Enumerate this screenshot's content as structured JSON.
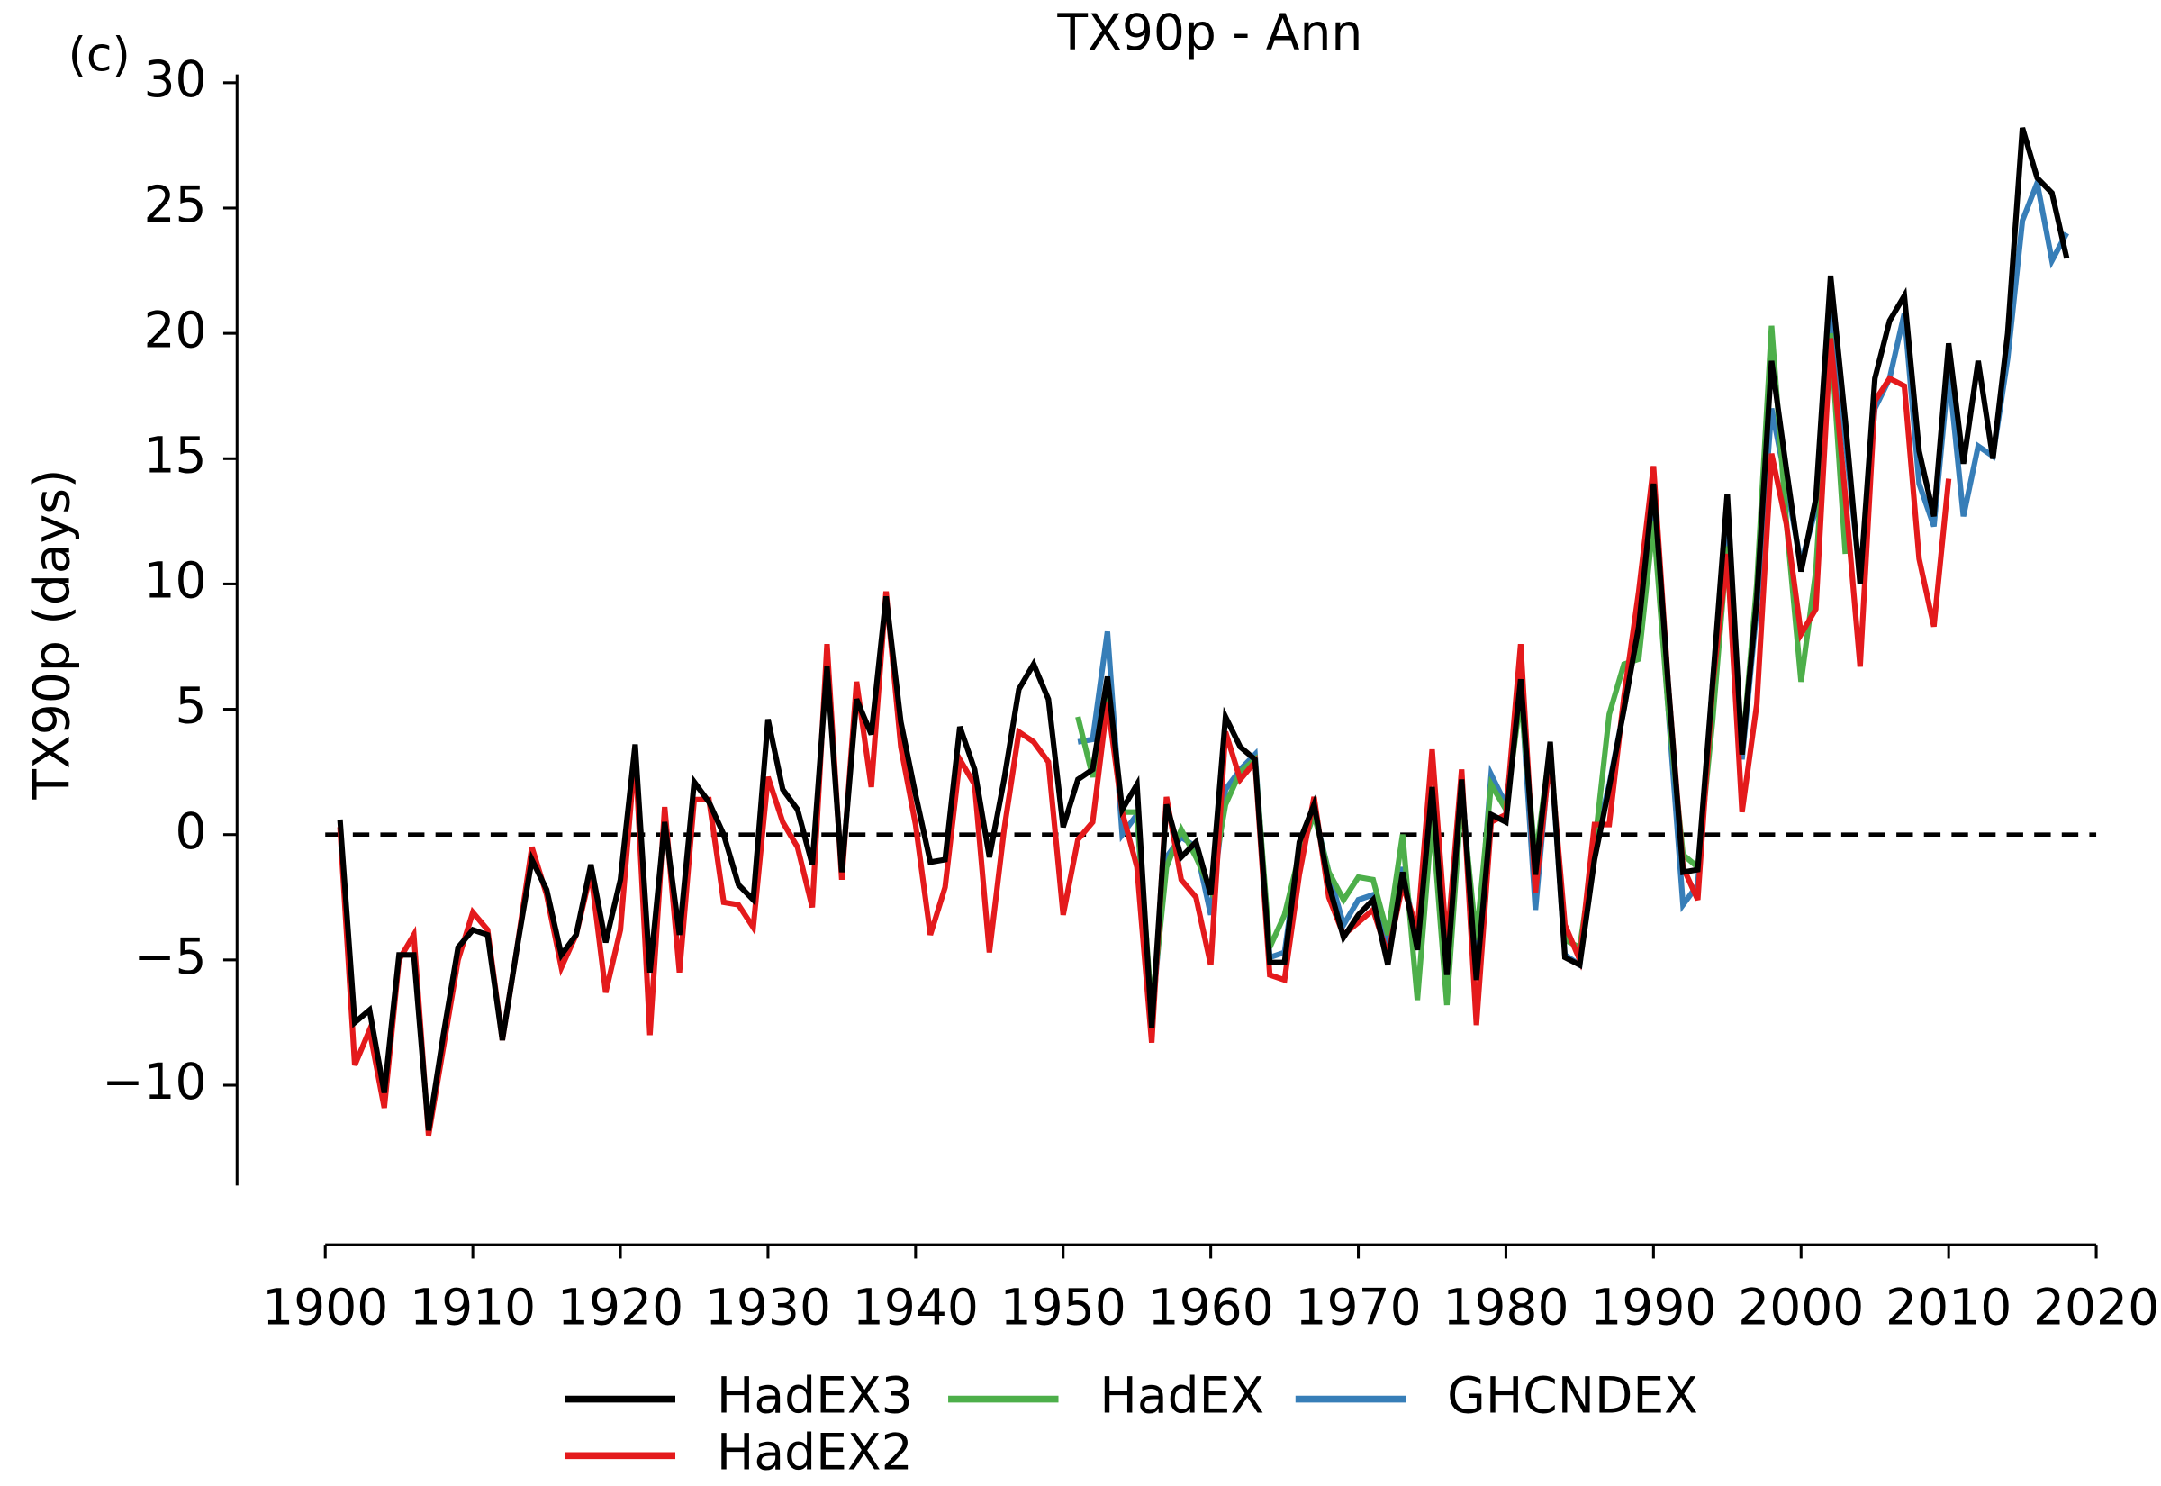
{
  "chart_data": {
    "type": "line",
    "title": "TX90p - Ann",
    "panel_label": "(c)",
    "y_label": "TX90p (days)",
    "xlim": [
      1900,
      2020
    ],
    "xticks": [
      1900,
      1910,
      1920,
      1930,
      1940,
      1950,
      1960,
      1970,
      1980,
      1990,
      2000,
      2010,
      2020
    ],
    "ylim": [
      -14,
      30
    ],
    "yticks": [
      {
        "value": -10,
        "label": "−10"
      },
      {
        "value": -5,
        "label": "−5"
      },
      0,
      5,
      10,
      15,
      20,
      25,
      30
    ],
    "reference_line": 0,
    "legend": "lower center",
    "x": [
      1901,
      1902,
      1903,
      1904,
      1905,
      1906,
      1907,
      1908,
      1909,
      1910,
      1911,
      1912,
      1913,
      1914,
      1915,
      1916,
      1917,
      1918,
      1919,
      1920,
      1921,
      1922,
      1923,
      1924,
      1925,
      1926,
      1927,
      1928,
      1929,
      1930,
      1931,
      1932,
      1933,
      1934,
      1935,
      1936,
      1937,
      1938,
      1939,
      1940,
      1941,
      1942,
      1943,
      1944,
      1945,
      1946,
      1947,
      1948,
      1949,
      1950,
      1951,
      1952,
      1953,
      1954,
      1955,
      1956,
      1957,
      1958,
      1959,
      1960,
      1961,
      1962,
      1963,
      1964,
      1965,
      1966,
      1967,
      1968,
      1969,
      1970,
      1971,
      1972,
      1973,
      1974,
      1975,
      1976,
      1977,
      1978,
      1979,
      1980,
      1981,
      1982,
      1983,
      1984,
      1985,
      1986,
      1987,
      1988,
      1989,
      1990,
      1991,
      1992,
      1993,
      1994,
      1995,
      1996,
      1997,
      1998,
      1999,
      2000,
      2001,
      2002,
      2003,
      2004,
      2005,
      2006,
      2007,
      2008,
      2009,
      2010,
      2011,
      2012,
      2013,
      2014,
      2015,
      2016,
      2017,
      2018
    ],
    "series": [
      {
        "name": "HadEX3",
        "color": "#000000",
        "values": [
          0.6,
          -7.5,
          -7,
          -10.3,
          -4.8,
          -4.8,
          -11.8,
          -8,
          -4.5,
          -3.8,
          -4,
          -8.2,
          -4.5,
          -1,
          -2.2,
          -4.8,
          -4,
          -1.2,
          -4.3,
          -1.8,
          3.6,
          -5.5,
          0.5,
          -4,
          2.1,
          1.3,
          0,
          -2,
          -2.6,
          4.6,
          1.8,
          1,
          -1.2,
          6.7,
          -1.5,
          5.4,
          4,
          9.5,
          4.5,
          1.6,
          -1.1,
          -1,
          4.3,
          2.6,
          -0.9,
          2.2,
          5.8,
          6.8,
          5.4,
          0.3,
          2.2,
          2.6,
          6.3,
          1,
          2,
          -7.7,
          1.2,
          -0.9,
          -0.3,
          -2.4,
          4.7,
          3.5,
          3,
          -5.1,
          -5.1,
          -0.3,
          1.2,
          -2,
          -4.1,
          -3.2,
          -2.6,
          -5.2,
          -1.5,
          -4.6,
          1.9,
          -5.6,
          2.2,
          -5.8,
          0.8,
          0.5,
          6.2,
          -1.6,
          3.7,
          -4.9,
          -5.2,
          -1,
          1.9,
          5,
          8.3,
          14,
          6,
          -1.5,
          -1.4,
          6,
          13.6,
          3.2,
          9.4,
          18.9,
          14.6,
          10.5,
          13.4,
          22.3,
          16.5,
          10,
          18.2,
          20.5,
          21.5,
          15.3,
          12.7,
          19.6,
          14.8,
          18.9,
          15,
          20,
          28.2,
          26.2,
          25.6,
          23
        ]
      },
      {
        "name": "HadEX2",
        "color": "#e41a1c",
        "values": [
          0.3,
          -9.2,
          -7.8,
          -10.9,
          -5,
          -4,
          -12,
          -8.5,
          -5,
          -3.1,
          -3.8,
          -8.2,
          -4.5,
          -0.5,
          -2.4,
          -5.3,
          -4,
          -1.5,
          -6.3,
          -3.8,
          3.3,
          -8,
          1.1,
          -5.5,
          1.4,
          1.4,
          -2.7,
          -2.8,
          -3.7,
          2.3,
          0.5,
          -0.5,
          -2.9,
          7.6,
          -1.8,
          6.1,
          1.9,
          9.7,
          3.5,
          0.4,
          -4,
          -2.1,
          3,
          2,
          -4.7,
          0.2,
          4.1,
          3.7,
          2.9,
          -3.2,
          -0.2,
          0.5,
          5.3,
          0.9,
          -1.3,
          -8.3,
          1.5,
          -1.8,
          -2.5,
          -5.2,
          4.1,
          2.2,
          2.9,
          -5.6,
          -5.8,
          -1.6,
          1.5,
          -2.5,
          -4,
          -3.5,
          -3,
          -4.8,
          -2,
          -3.8,
          3.4,
          -4.5,
          2.6,
          -7.6,
          0.5,
          0.8,
          7.6,
          -2.3,
          3.2,
          -3.6,
          -5,
          0.4,
          0.4,
          5.5,
          9.7,
          14.7,
          6,
          -1.3,
          -2.6,
          5.9,
          11.2,
          0.9,
          5.2,
          15.2,
          12.4,
          8,
          9,
          19.8,
          13.5,
          6.7,
          17.3,
          18.2,
          17.9,
          11,
          8.3,
          14.2,
          null,
          null,
          null,
          null,
          null,
          null,
          null,
          null
        ]
      },
      {
        "name": "HadEX",
        "color": "#4daf4a",
        "values": [
          null,
          null,
          null,
          null,
          null,
          null,
          null,
          null,
          null,
          null,
          null,
          null,
          null,
          null,
          null,
          null,
          null,
          null,
          null,
          null,
          null,
          null,
          null,
          null,
          null,
          null,
          null,
          null,
          null,
          null,
          null,
          null,
          null,
          null,
          null,
          null,
          null,
          null,
          null,
          null,
          null,
          null,
          null,
          null,
          null,
          null,
          null,
          null,
          null,
          null,
          4.7,
          2.3,
          5.5,
          0.9,
          0.9,
          -7,
          -1.3,
          0.2,
          -0.9,
          -2.2,
          1.2,
          2.5,
          3,
          -4.5,
          -3.2,
          -0.8,
          0.8,
          -1.5,
          -2.6,
          -1.7,
          -1.8,
          -4,
          0,
          -6.6,
          0.7,
          -6.8,
          1.5,
          -4.2,
          2,
          1,
          5.5,
          -1,
          3.5,
          -4.2,
          -4.5,
          -0.5,
          4.8,
          6.8,
          7,
          12.5,
          5,
          -0.8,
          -1.3,
          4.5,
          11.5,
          3.2,
          10,
          20.3,
          12.5,
          6.1,
          10.5,
          20,
          11.2,
          null,
          null,
          null,
          null,
          null,
          null,
          null,
          null,
          null,
          null,
          null,
          null,
          null,
          null,
          null
        ]
      },
      {
        "name": "GHCNDEX",
        "color": "#377eb8",
        "values": [
          null,
          null,
          null,
          null,
          null,
          null,
          null,
          null,
          null,
          null,
          null,
          null,
          null,
          null,
          null,
          null,
          null,
          null,
          null,
          null,
          null,
          null,
          null,
          null,
          null,
          null,
          null,
          null,
          null,
          null,
          null,
          null,
          null,
          null,
          null,
          null,
          null,
          null,
          null,
          null,
          null,
          null,
          null,
          null,
          null,
          null,
          null,
          null,
          null,
          null,
          3.7,
          3.8,
          8.1,
          0,
          0.8,
          -7.4,
          -0.9,
          -0.1,
          -0.5,
          -3.2,
          1.8,
          2.6,
          3.2,
          -4.9,
          -4.7,
          -0.5,
          0.9,
          -1.5,
          -3.6,
          -2.6,
          -2.4,
          -4.5,
          -1.3,
          -4.5,
          1.8,
          -5.5,
          2,
          -5,
          2.4,
          1.2,
          6,
          -3,
          3.5,
          -4.8,
          -5.2,
          -0.5,
          2,
          5,
          8.5,
          13,
          5,
          -2.8,
          -2,
          6,
          13,
          3,
          9,
          17,
          14,
          10.8,
          13,
          21,
          15.8,
          10.2,
          17,
          18.2,
          20.8,
          14,
          12.3,
          18.5,
          12.7,
          15.5,
          15.1,
          19,
          24.5,
          26,
          22.9,
          24
        ]
      }
    ]
  }
}
